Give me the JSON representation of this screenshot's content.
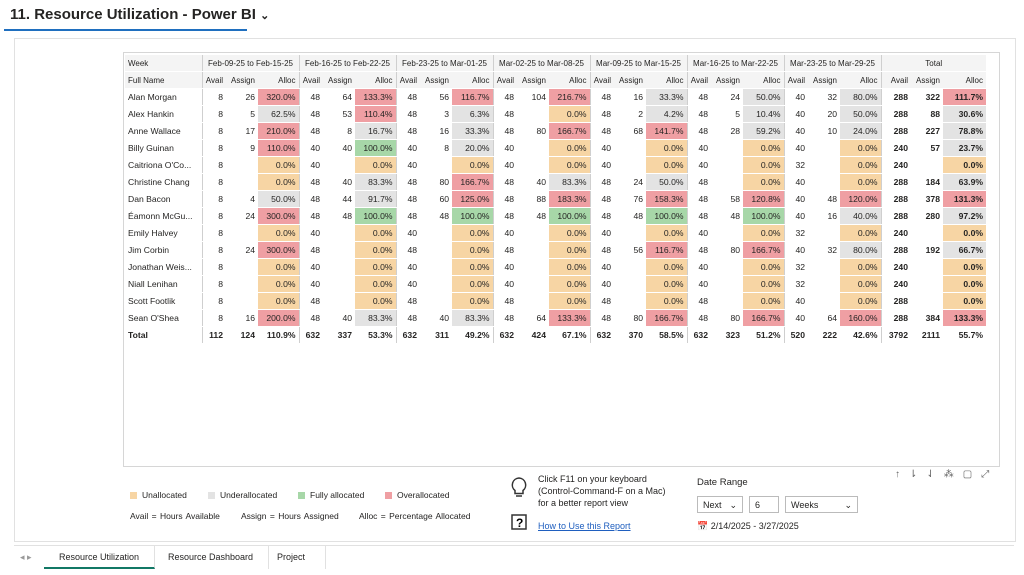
{
  "header": {
    "title": "11. Resource Utilization - Power BI"
  },
  "table": {
    "week_label": "Week",
    "name_label": "Full Name",
    "weeks": [
      "Feb-09-25 to Feb-15-25",
      "Feb-16-25 to Feb-22-25",
      "Feb-23-25 to Mar-01-25",
      "Mar-02-25 to Mar-08-25",
      "Mar-09-25 to Mar-15-25",
      "Mar-16-25 to Mar-22-25",
      "Mar-23-25 to Mar-29-25",
      "Total"
    ],
    "subheaders": [
      "Avail",
      "Assign",
      "Alloc"
    ],
    "rows": [
      {
        "name": "Alan Morgan",
        "cells": [
          "8",
          "26",
          "320.0%",
          "48",
          "64",
          "133.3%",
          "48",
          "56",
          "116.7%",
          "48",
          "104",
          "216.7%",
          "48",
          "16",
          "33.3%",
          "48",
          "24",
          "50.0%",
          "40",
          "32",
          "80.0%",
          "288",
          "322",
          "111.7%"
        ]
      },
      {
        "name": "Alex Hankin",
        "cells": [
          "8",
          "5",
          "62.5%",
          "48",
          "53",
          "110.4%",
          "48",
          "3",
          "6.3%",
          "48",
          null,
          "0.0%",
          "48",
          "2",
          "4.2%",
          "48",
          "5",
          "10.4%",
          "40",
          "20",
          "50.0%",
          "288",
          "88",
          "30.6%"
        ]
      },
      {
        "name": "Anne Wallace",
        "cells": [
          "8",
          "17",
          "210.0%",
          "48",
          "8",
          "16.7%",
          "48",
          "16",
          "33.3%",
          "48",
          "80",
          "166.7%",
          "48",
          "68",
          "141.7%",
          "48",
          "28",
          "59.2%",
          "40",
          "10",
          "24.0%",
          "288",
          "227",
          "78.8%"
        ]
      },
      {
        "name": "Billy Guinan",
        "cells": [
          "8",
          "9",
          "110.0%",
          "40",
          "40",
          "100.0%",
          "40",
          "8",
          "20.0%",
          "40",
          null,
          "0.0%",
          "40",
          null,
          "0.0%",
          "40",
          null,
          "0.0%",
          "40",
          null,
          "0.0%",
          "240",
          "57",
          "23.7%"
        ]
      },
      {
        "name": "Caitriona O'Co...",
        "cells": [
          "8",
          null,
          "0.0%",
          "40",
          null,
          "0.0%",
          "40",
          null,
          "0.0%",
          "40",
          null,
          "0.0%",
          "40",
          null,
          "0.0%",
          "40",
          null,
          "0.0%",
          "32",
          null,
          "0.0%",
          "240",
          null,
          "0.0%"
        ]
      },
      {
        "name": "Christine Chang",
        "cells": [
          "8",
          null,
          "0.0%",
          "48",
          "40",
          "83.3%",
          "48",
          "80",
          "166.7%",
          "48",
          "40",
          "83.3%",
          "48",
          "24",
          "50.0%",
          "48",
          null,
          "0.0%",
          "40",
          null,
          "0.0%",
          "288",
          "184",
          "63.9%"
        ]
      },
      {
        "name": "Dan Bacon",
        "cells": [
          "8",
          "4",
          "50.0%",
          "48",
          "44",
          "91.7%",
          "48",
          "60",
          "125.0%",
          "48",
          "88",
          "183.3%",
          "48",
          "76",
          "158.3%",
          "48",
          "58",
          "120.8%",
          "40",
          "48",
          "120.0%",
          "288",
          "378",
          "131.3%"
        ]
      },
      {
        "name": "Éamonn McGu...",
        "cells": [
          "8",
          "24",
          "300.0%",
          "48",
          "48",
          "100.0%",
          "48",
          "48",
          "100.0%",
          "48",
          "48",
          "100.0%",
          "48",
          "48",
          "100.0%",
          "48",
          "48",
          "100.0%",
          "40",
          "16",
          "40.0%",
          "288",
          "280",
          "97.2%"
        ]
      },
      {
        "name": "Emily Halvey",
        "cells": [
          "8",
          null,
          "0.0%",
          "40",
          null,
          "0.0%",
          "40",
          null,
          "0.0%",
          "40",
          null,
          "0.0%",
          "40",
          null,
          "0.0%",
          "40",
          null,
          "0.0%",
          "32",
          null,
          "0.0%",
          "240",
          null,
          "0.0%"
        ]
      },
      {
        "name": "Jim Corbin",
        "cells": [
          "8",
          "24",
          "300.0%",
          "48",
          null,
          "0.0%",
          "48",
          null,
          "0.0%",
          "48",
          null,
          "0.0%",
          "48",
          "56",
          "116.7%",
          "48",
          "80",
          "166.7%",
          "40",
          "32",
          "80.0%",
          "288",
          "192",
          "66.7%"
        ]
      },
      {
        "name": "Jonathan Weis...",
        "cells": [
          "8",
          null,
          "0.0%",
          "40",
          null,
          "0.0%",
          "40",
          null,
          "0.0%",
          "40",
          null,
          "0.0%",
          "40",
          null,
          "0.0%",
          "40",
          null,
          "0.0%",
          "32",
          null,
          "0.0%",
          "240",
          null,
          "0.0%"
        ]
      },
      {
        "name": "Niall Lenihan",
        "cells": [
          "8",
          null,
          "0.0%",
          "40",
          null,
          "0.0%",
          "40",
          null,
          "0.0%",
          "40",
          null,
          "0.0%",
          "40",
          null,
          "0.0%",
          "40",
          null,
          "0.0%",
          "32",
          null,
          "0.0%",
          "240",
          null,
          "0.0%"
        ]
      },
      {
        "name": "Scott Footlik",
        "cells": [
          "8",
          null,
          "0.0%",
          "48",
          null,
          "0.0%",
          "48",
          null,
          "0.0%",
          "48",
          null,
          "0.0%",
          "48",
          null,
          "0.0%",
          "48",
          null,
          "0.0%",
          "40",
          null,
          "0.0%",
          "288",
          null,
          "0.0%"
        ]
      },
      {
        "name": "Sean O'Shea",
        "cells": [
          "8",
          "16",
          "200.0%",
          "48",
          "40",
          "83.3%",
          "48",
          "40",
          "83.3%",
          "48",
          "64",
          "133.3%",
          "48",
          "80",
          "166.7%",
          "48",
          "80",
          "166.7%",
          "40",
          "64",
          "160.0%",
          "288",
          "384",
          "133.3%"
        ]
      },
      {
        "name": "Total",
        "cells": [
          "112",
          "124",
          "110.9%",
          "632",
          "337",
          "53.3%",
          "632",
          "311",
          "49.2%",
          "632",
          "424",
          "67.1%",
          "632",
          "370",
          "58.5%",
          "632",
          "323",
          "51.2%",
          "520",
          "222",
          "42.6%",
          "3792",
          "2111",
          "55.7%"
        ]
      }
    ]
  },
  "legend": {
    "items": [
      {
        "label": "Unallocated",
        "color": "#f7d5a4"
      },
      {
        "label": "Underallocated",
        "color": "#e3e3e3"
      },
      {
        "label": "Fully allocated",
        "color": "#a7d7a8"
      },
      {
        "label": "Overallocated",
        "color": "#ef9fa3"
      }
    ],
    "notes": [
      "Avail = Hours Available",
      "Assign = Hours Assigned",
      "Alloc = Percentage Allocated"
    ]
  },
  "tip": {
    "text": "Click F11 on your keyboard (Control-Command-F on a Mac) for a better report view",
    "link": "How to Use this Report"
  },
  "date_range": {
    "label": "Date Range",
    "mode": "Next",
    "count": "6",
    "unit": "Weeks",
    "range": "2/14/2025 - 3/27/2025"
  },
  "tabs": [
    "Resource Utilization",
    "Resource Dashboard",
    "Project Calen"
  ]
}
